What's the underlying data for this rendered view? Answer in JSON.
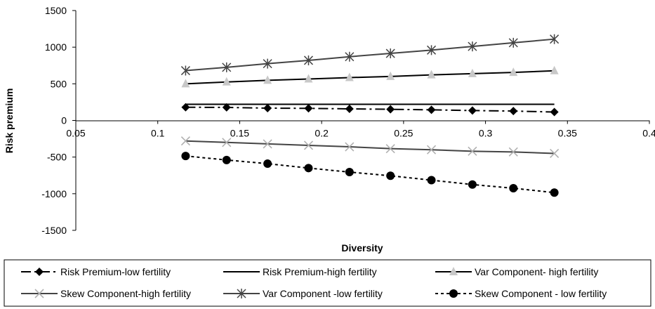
{
  "chart_data": {
    "type": "line",
    "xlabel": "Diversity",
    "ylabel": "Risk premium",
    "xlim": [
      0.05,
      0.4
    ],
    "ylim": [
      -1500,
      1500
    ],
    "x_ticks": [
      "0.05",
      "0.1",
      "0.15",
      "0.2",
      "0.25",
      "0.3",
      "0.35",
      "0.4"
    ],
    "y_ticks": [
      "1500",
      "1000",
      "500",
      "0",
      "-500",
      "-1000",
      "-1500"
    ],
    "grid": false,
    "legend_position": "bottom",
    "x": [
      0.117,
      0.142,
      0.167,
      0.192,
      0.217,
      0.242,
      0.267,
      0.292,
      0.317,
      0.342
    ],
    "series": [
      {
        "name": "Risk Premium-low fertility",
        "color": "#000000",
        "dash": "dashdot",
        "marker": "diamond",
        "values": [
          180,
          178,
          168,
          165,
          158,
          152,
          145,
          135,
          128,
          115
        ]
      },
      {
        "name": "Risk Premium-high fertility",
        "color": "#000000",
        "dash": "solid",
        "marker": "none",
        "values": [
          220,
          220,
          220,
          220,
          220,
          220,
          220,
          220,
          220,
          220
        ]
      },
      {
        "name": "Var Component- high fertility",
        "color": "#000000",
        "dash": "solid",
        "marker": "triangle",
        "marker_color": "#c8c8c8",
        "values": [
          500,
          525,
          548,
          565,
          585,
          600,
          622,
          638,
          655,
          678
        ]
      },
      {
        "name": "Skew Component-high fertility",
        "color": "#444444",
        "dash": "solid",
        "marker": "x",
        "marker_color": "#b0b0b0",
        "values": [
          -280,
          -300,
          -320,
          -340,
          -360,
          -385,
          -400,
          -420,
          -430,
          -450
        ]
      },
      {
        "name": "Var Component -low fertility",
        "color": "#444444",
        "dash": "solid",
        "marker": "star",
        "values": [
          680,
          725,
          775,
          820,
          870,
          915,
          960,
          1010,
          1060,
          1110
        ]
      },
      {
        "name": "Skew Component - low fertility",
        "color": "#000000",
        "dash": "dotted",
        "marker": "circle",
        "values": [
          -485,
          -540,
          -590,
          -650,
          -705,
          -755,
          -815,
          -875,
          -925,
          -985
        ]
      }
    ]
  }
}
